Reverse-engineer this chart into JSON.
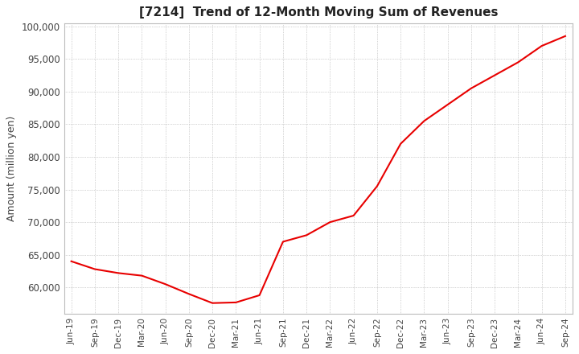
{
  "title": "[7214]  Trend of 12-Month Moving Sum of Revenues",
  "ylabel": "Amount (million yen)",
  "ylim": [
    56000,
    100500
  ],
  "yticks": [
    60000,
    65000,
    70000,
    75000,
    80000,
    85000,
    90000,
    95000,
    100000
  ],
  "line_color": "#e80000",
  "background_color": "#ffffff",
  "grid_color": "#aaaaaa",
  "x_labels": [
    "Jun-19",
    "Sep-19",
    "Dec-19",
    "Mar-20",
    "Jun-20",
    "Sep-20",
    "Dec-20",
    "Mar-21",
    "Jun-21",
    "Sep-21",
    "Dec-21",
    "Mar-22",
    "Jun-22",
    "Sep-22",
    "Dec-22",
    "Mar-23",
    "Jun-23",
    "Sep-23",
    "Dec-23",
    "Mar-24",
    "Jun-24",
    "Sep-24"
  ],
  "values": [
    64000,
    62800,
    62200,
    61800,
    60500,
    59000,
    57600,
    57700,
    58800,
    67000,
    68000,
    70000,
    71000,
    75500,
    82000,
    85500,
    88000,
    90500,
    92500,
    94500,
    97000,
    98500
  ]
}
